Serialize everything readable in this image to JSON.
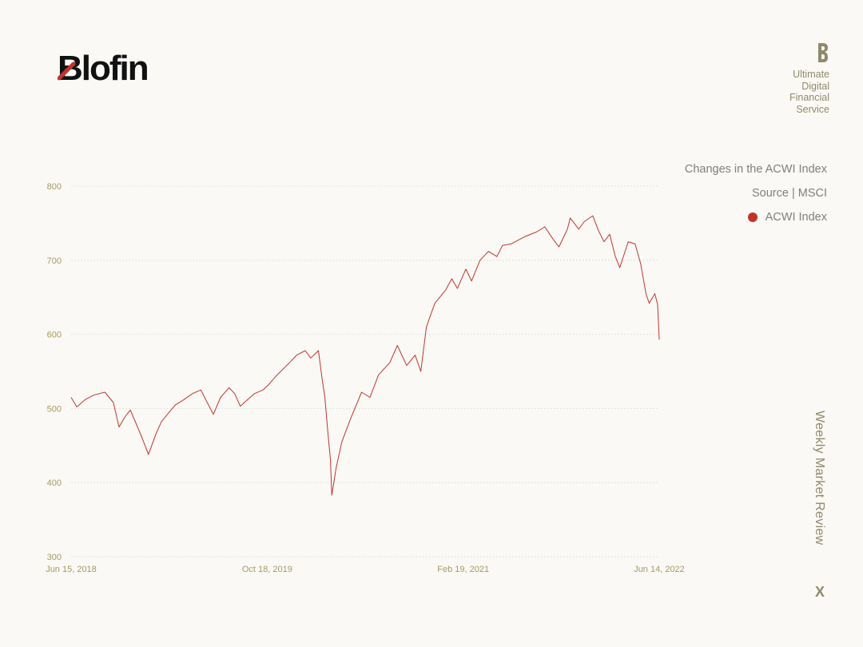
{
  "brand": {
    "logo_text": "Blofin",
    "tagline_lines": [
      "Ultimate",
      "Digital",
      "Financial",
      "Service"
    ],
    "accent_color": "#c0352b",
    "gold_color": "#8f8a6a"
  },
  "side": {
    "chart_title": "Changes in the ACWI Index",
    "source": "Source | MSCI",
    "vertical_title": "Weekly Market Review",
    "close_label": "X"
  },
  "chart_data": {
    "type": "line",
    "title": "Changes in the ACWI Index",
    "xlabel": "",
    "ylabel": "",
    "ylim": [
      300,
      800
    ],
    "yticks": [
      300,
      400,
      500,
      600,
      700,
      800
    ],
    "xlim": [
      "2018-06-15",
      "2022-06-14"
    ],
    "xticks": [
      "Jun 15, 2018",
      "Oct 18, 2019",
      "Feb 19, 2021",
      "Jun 14, 2022"
    ],
    "grid": true,
    "legend_position": "right",
    "series": [
      {
        "name": "ACWI Index",
        "color": "#c0352b",
        "x": [
          "2018-06-15",
          "2018-06-29",
          "2018-07-20",
          "2018-08-10",
          "2018-09-07",
          "2018-09-28",
          "2018-10-12",
          "2018-10-26",
          "2018-11-09",
          "2018-11-23",
          "2018-12-07",
          "2018-12-24",
          "2019-01-11",
          "2019-01-25",
          "2019-02-15",
          "2019-03-01",
          "2019-03-22",
          "2019-04-12",
          "2019-05-03",
          "2019-05-17",
          "2019-06-03",
          "2019-06-21",
          "2019-07-12",
          "2019-07-26",
          "2019-08-09",
          "2019-08-23",
          "2019-09-13",
          "2019-10-04",
          "2019-10-18",
          "2019-11-08",
          "2019-12-06",
          "2019-12-27",
          "2020-01-17",
          "2020-01-31",
          "2020-02-19",
          "2020-02-28",
          "2020-03-06",
          "2020-03-13",
          "2020-03-20",
          "2020-03-23",
          "2020-04-03",
          "2020-04-17",
          "2020-05-08",
          "2020-06-05",
          "2020-06-26",
          "2020-07-17",
          "2020-08-14",
          "2020-09-02",
          "2020-09-25",
          "2020-10-16",
          "2020-10-30",
          "2020-11-13",
          "2020-12-04",
          "2020-12-31",
          "2021-01-15",
          "2021-01-29",
          "2021-02-19",
          "2021-03-05",
          "2021-03-26",
          "2021-04-16",
          "2021-05-07",
          "2021-05-21",
          "2021-06-11",
          "2021-07-02",
          "2021-07-16",
          "2021-08-13",
          "2021-09-03",
          "2021-09-24",
          "2021-10-08",
          "2021-10-29",
          "2021-11-05",
          "2021-11-26",
          "2021-12-10",
          "2021-12-31",
          "2022-01-14",
          "2022-01-28",
          "2022-02-11",
          "2022-02-25",
          "2022-03-08",
          "2022-03-29",
          "2022-04-15",
          "2022-04-29",
          "2022-05-12",
          "2022-05-20",
          "2022-06-03",
          "2022-06-10",
          "2022-06-14"
        ],
        "values": [
          515,
          502,
          512,
          518,
          522,
          508,
          475,
          488,
          498,
          480,
          462,
          438,
          465,
          482,
          496,
          505,
          512,
          520,
          525,
          510,
          492,
          515,
          528,
          520,
          503,
          510,
          520,
          525,
          532,
          545,
          560,
          572,
          578,
          568,
          578,
          540,
          515,
          470,
          430,
          383,
          420,
          455,
          485,
          522,
          515,
          545,
          562,
          585,
          558,
          572,
          550,
          610,
          642,
          660,
          675,
          662,
          688,
          672,
          700,
          712,
          705,
          720,
          722,
          728,
          732,
          738,
          745,
          728,
          718,
          742,
          757,
          742,
          752,
          760,
          740,
          725,
          735,
          705,
          690,
          725,
          722,
          695,
          655,
          642,
          655,
          640,
          593
        ]
      }
    ]
  }
}
